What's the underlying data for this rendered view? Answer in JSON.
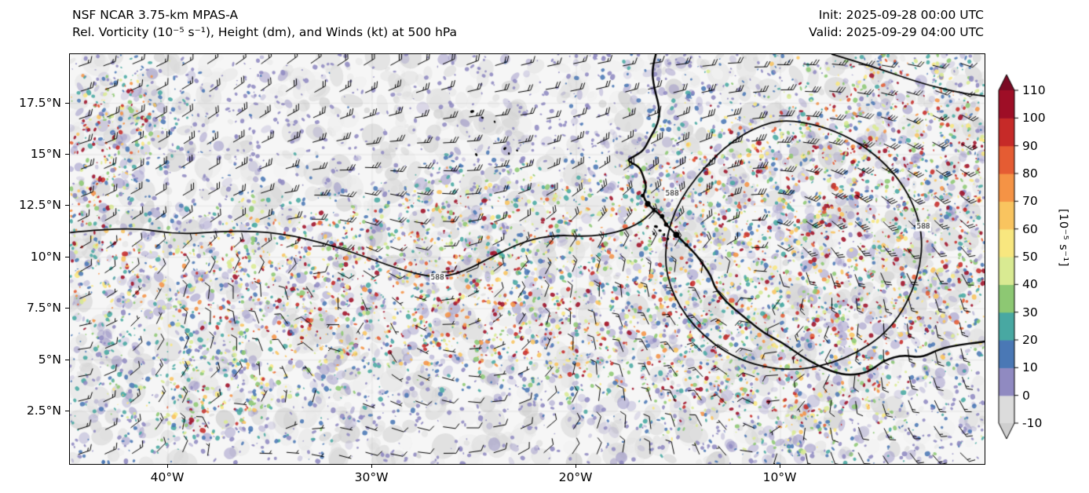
{
  "header": {
    "title_line1": "NSF NCAR 3.75-km MPAS-A",
    "title_line2": "Rel. Vorticity (10⁻⁵ s⁻¹), Height (dm), and Winds (kt) at 500 hPa",
    "init_line": "Init: 2025-09-28 00:00 UTC",
    "valid_line": "Valid: 2025-09-29 04:00 UTC"
  },
  "chart_data": {
    "type": "heatmap",
    "model": "NSF NCAR 3.75-km MPAS-A",
    "title": "Rel. Vorticity (10⁻⁵ s⁻¹), Height (dm), and Winds (kt) at 500 hPa",
    "init_time": "2025-09-28 00:00 UTC",
    "valid_time": "2025-09-29 04:00 UTC",
    "level_hPa": 500,
    "layers": [
      "Relative vorticity (shaded, 10⁻⁵ s⁻¹)",
      "Geopotential height (black contours, dm)",
      "Wind barbs (kt)"
    ],
    "x_axis": {
      "range_lon_w": [
        44.8,
        0.0
      ],
      "ticks": [
        {
          "label": "40°W",
          "value": 40
        },
        {
          "label": "30°W",
          "value": 30
        },
        {
          "label": "20°W",
          "value": 20
        },
        {
          "label": "10°W",
          "value": 10
        }
      ]
    },
    "y_axis": {
      "range_lat": [
        0.0,
        19.9
      ],
      "ticks": [
        {
          "label": "17.5°N",
          "value": 17.5
        },
        {
          "label": "15°N",
          "value": 15
        },
        {
          "label": "12.5°N",
          "value": 12.5
        },
        {
          "label": "10°N",
          "value": 10
        },
        {
          "label": "7.5°N",
          "value": 7.5
        },
        {
          "label": "5°N",
          "value": 5
        },
        {
          "label": "2.5°N",
          "value": 2.5
        }
      ]
    },
    "colorbar": {
      "label": "[10⁻⁵ s⁻¹]",
      "tick_values": [
        -10,
        0,
        10,
        20,
        30,
        40,
        50,
        60,
        70,
        80,
        90,
        100,
        110
      ],
      "bands": [
        {
          "from": -10,
          "to": 0,
          "color": "#dcdcdc"
        },
        {
          "from": 0,
          "to": 10,
          "color": "#908ac1"
        },
        {
          "from": 10,
          "to": 20,
          "color": "#4a78b5"
        },
        {
          "from": 20,
          "to": 30,
          "color": "#48a8a2"
        },
        {
          "from": 30,
          "to": 40,
          "color": "#8dc873"
        },
        {
          "from": 40,
          "to": 50,
          "color": "#d9ea92"
        },
        {
          "from": 50,
          "to": 60,
          "color": "#f8e77f"
        },
        {
          "from": 60,
          "to": 70,
          "color": "#f9c45f"
        },
        {
          "from": 70,
          "to": 80,
          "color": "#f59345"
        },
        {
          "from": 80,
          "to": 90,
          "color": "#e55c33"
        },
        {
          "from": 90,
          "to": 100,
          "color": "#c62a28"
        },
        {
          "from": 100,
          "to": 110,
          "color": "#9e0e26"
        }
      ],
      "under_color": "#cfcfcf",
      "over_color": "#7a0a24"
    },
    "height_contour_value": "588",
    "contour_labels": [
      {
        "text": "588",
        "lon_w": 26.8,
        "lat": 9.0
      },
      {
        "text": "588",
        "lon_w": 15.3,
        "lat": 13.1
      },
      {
        "text": "588",
        "lon_w": 3.0,
        "lat": 11.5
      }
    ],
    "height_contours": [
      {
        "closed": false,
        "points": [
          [
            44.8,
            11.2
          ],
          [
            42,
            11.5
          ],
          [
            39.5,
            11.1
          ],
          [
            37,
            11.3
          ],
          [
            34.5,
            11.2
          ],
          [
            32,
            10.6
          ],
          [
            30,
            9.9
          ],
          [
            28.3,
            9.3
          ],
          [
            26.8,
            9.0
          ],
          [
            25.5,
            9.3
          ],
          [
            24,
            10.1
          ],
          [
            22.5,
            10.8
          ],
          [
            21,
            11.1
          ],
          [
            19.5,
            11.0
          ],
          [
            18,
            11.2
          ],
          [
            16.8,
            11.7
          ],
          [
            16.1,
            12.4
          ]
        ]
      },
      {
        "closed": true,
        "points": [
          [
            9.5,
            16.8
          ],
          [
            6.5,
            15.9
          ],
          [
            4.2,
            14.0
          ],
          [
            3.0,
            11.5
          ],
          [
            3.2,
            9.0
          ],
          [
            4.5,
            6.5
          ],
          [
            6.8,
            5.0
          ],
          [
            9.5,
            4.4
          ],
          [
            12.2,
            5.0
          ],
          [
            14.3,
            6.6
          ],
          [
            15.5,
            8.6
          ],
          [
            15.7,
            10.6
          ],
          [
            15.0,
            12.8
          ],
          [
            13.2,
            15.0
          ],
          [
            11.4,
            16.3
          ]
        ]
      },
      {
        "closed": false,
        "points": [
          [
            7.5,
            19.9
          ],
          [
            5.5,
            19.3
          ],
          [
            3.2,
            18.5
          ],
          [
            1.2,
            18.0
          ],
          [
            0,
            17.85
          ]
        ]
      }
    ],
    "coastline": [
      [
        16.1,
        19.9
      ],
      [
        16.3,
        19.2
      ],
      [
        16.2,
        18.3
      ],
      [
        15.9,
        17.2
      ],
      [
        16.0,
        16.5
      ],
      [
        16.4,
        15.8
      ],
      [
        16.7,
        15.2
      ],
      [
        17.2,
        14.9
      ],
      [
        17.5,
        14.75
      ],
      [
        17.3,
        14.6
      ],
      [
        16.9,
        14.4
      ],
      [
        16.7,
        13.9
      ],
      [
        16.55,
        13.4
      ],
      [
        16.75,
        13.0
      ],
      [
        16.5,
        12.6
      ],
      [
        16.2,
        12.3
      ],
      [
        15.8,
        12.0
      ],
      [
        15.6,
        11.6
      ],
      [
        15.1,
        11.1
      ],
      [
        14.6,
        10.6
      ],
      [
        14.1,
        10.1
      ],
      [
        13.75,
        9.6
      ],
      [
        13.4,
        9.1
      ],
      [
        13.25,
        8.6
      ],
      [
        12.9,
        8.1
      ],
      [
        12.4,
        7.6
      ],
      [
        11.6,
        6.95
      ],
      [
        10.8,
        6.3
      ],
      [
        9.9,
        5.85
      ],
      [
        9.0,
        5.2
      ],
      [
        8.2,
        4.75
      ],
      [
        7.4,
        4.4
      ],
      [
        6.6,
        4.25
      ],
      [
        5.7,
        4.4
      ],
      [
        4.9,
        5.0
      ],
      [
        4.0,
        5.25
      ],
      [
        3.1,
        5.1
      ],
      [
        2.2,
        5.55
      ],
      [
        1.2,
        5.75
      ],
      [
        0.3,
        5.85
      ],
      [
        0.0,
        5.9
      ]
    ],
    "islands": [
      {
        "lon_w": 25.1,
        "lat": 17.1,
        "r": 2.6
      },
      {
        "lon_w": 24.6,
        "lat": 16.8,
        "r": 1.8
      },
      {
        "lon_w": 24.0,
        "lat": 16.6,
        "r": 1.6
      },
      {
        "lon_w": 23.5,
        "lat": 15.3,
        "r": 2.2
      },
      {
        "lon_w": 23.3,
        "lat": 15.05,
        "r": 1.6
      },
      {
        "lon_w": 24.9,
        "lat": 15.0,
        "r": 2.0
      },
      {
        "lon_w": 22.9,
        "lat": 15.2,
        "r": 1.5
      },
      {
        "lon_w": 16.1,
        "lat": 11.5,
        "r": 2.6
      },
      {
        "lon_w": 15.9,
        "lat": 11.3,
        "r": 2.2
      },
      {
        "lon_w": 15.7,
        "lat": 11.1,
        "r": 2.0
      },
      {
        "lon_w": 16.2,
        "lat": 11.15,
        "r": 1.8
      },
      {
        "lon_w": 15.5,
        "lat": 10.9,
        "r": 1.8
      }
    ],
    "vorticity_regions": [
      {
        "lon_w": 33,
        "lat": 8.8,
        "sx": 4.5,
        "sy": 1.9,
        "amp": 1.4
      },
      {
        "lon_w": 32.5,
        "lat": 8.8,
        "sx": 2.2,
        "sy": 1.0,
        "amp": 1.4
      },
      {
        "lon_w": 11,
        "lat": 9.5,
        "sx": 5.0,
        "sy": 4.2,
        "amp": 1.7
      },
      {
        "lon_w": 12,
        "lat": 8.6,
        "sx": 2.5,
        "sy": 1.9,
        "amp": 1.5
      },
      {
        "lon_w": 5,
        "lat": 13,
        "sx": 3.5,
        "sy": 2.5,
        "amp": 0.9
      },
      {
        "lon_w": 2,
        "lat": 10,
        "sx": 2.5,
        "sy": 3.0,
        "amp": 0.9
      },
      {
        "lon_w": 1.5,
        "lat": 13.5,
        "sx": 2.0,
        "sy": 2.0,
        "amp": 0.7
      },
      {
        "lon_w": 4,
        "lat": 17,
        "sx": 4.0,
        "sy": 2.0,
        "amp": 0.55
      },
      {
        "lon_w": 5.3,
        "lat": 19,
        "sx": 1.2,
        "sy": 0.8,
        "amp": 0.8
      },
      {
        "lon_w": 38,
        "lat": 2.9,
        "sx": 3.5,
        "sy": 1.4,
        "amp": 0.75
      },
      {
        "lon_w": 38,
        "lat": 2.6,
        "sx": 0.8,
        "sy": 0.6,
        "amp": 1.5
      },
      {
        "lon_w": 42,
        "lat": 16.8,
        "sx": 1.6,
        "sy": 1.4,
        "amp": 0.95
      },
      {
        "lon_w": 44,
        "lat": 15.5,
        "sx": 1.0,
        "sy": 1.8,
        "amp": 0.9
      },
      {
        "lon_w": 44,
        "lat": 10,
        "sx": 1.6,
        "sy": 2.6,
        "amp": 0.85
      },
      {
        "lon_w": 24,
        "lat": 12.5,
        "sx": 4.0,
        "sy": 1.4,
        "amp": 0.6
      },
      {
        "lon_w": 19.5,
        "lat": 7,
        "sx": 3.0,
        "sy": 1.6,
        "amp": 0.55
      },
      {
        "lon_w": 25,
        "lat": 5.5,
        "sx": 5.0,
        "sy": 1.5,
        "amp": 0.45
      },
      {
        "lon_w": 29.5,
        "lat": 9,
        "sx": 8.0,
        "sy": 2.6,
        "amp": 0.5
      },
      {
        "lon_w": 15,
        "lat": 4,
        "sx": 3.0,
        "sy": 1.5,
        "amp": 0.5
      },
      {
        "lon_w": 8,
        "lat": 2.5,
        "sx": 3.0,
        "sy": 1.5,
        "amp": 0.45
      },
      {
        "lon_w": 27,
        "lat": 17.5,
        "sx": 5.0,
        "sy": 2.5,
        "amp": -0.22
      },
      {
        "lon_w": 22,
        "lat": 1,
        "sx": 6.0,
        "sy": 1.6,
        "amp": -0.18
      },
      {
        "lon_w": 33,
        "lat": 14.5,
        "sx": 4.0,
        "sy": 1.6,
        "amp": -0.12
      }
    ],
    "wind_vortices": [
      {
        "lon_w": 11,
        "lat": 9.5,
        "speed_kt": 20,
        "radius_deg": 5.0
      },
      {
        "lon_w": 33,
        "lat": 8.8,
        "speed_kt": 12,
        "radius_deg": 3.5
      },
      {
        "lon_w": 38,
        "lat": 2.6,
        "speed_kt": 10,
        "radius_deg": 1.0
      }
    ]
  },
  "colors": {
    "background": "#f6f6f6",
    "coast_and_contours": "#000000",
    "wind_barbs": "#000000",
    "speckle_purple": "#968fc4"
  }
}
